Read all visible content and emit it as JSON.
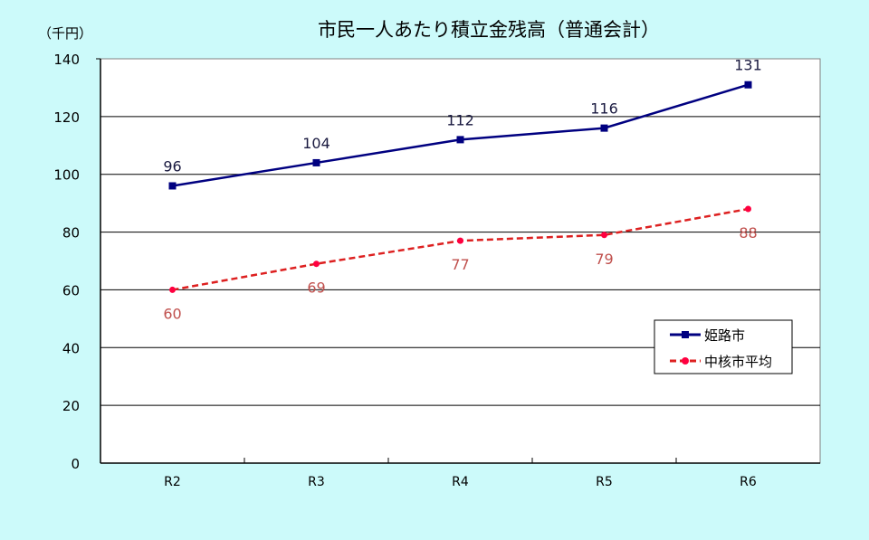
{
  "chart_data": {
    "type": "line",
    "title": "市民一人あたり積立金残高（普通会計）",
    "ylabel": "（千円）",
    "xlabel": "",
    "categories": [
      "R2",
      "R3",
      "R4",
      "R5",
      "R6"
    ],
    "ylim": [
      0,
      140
    ],
    "yticks": [
      0,
      20,
      40,
      60,
      80,
      100,
      120,
      140
    ],
    "grid": true,
    "legend_position": "right",
    "series": [
      {
        "name": "姫路市",
        "values": [
          96,
          104,
          112,
          116,
          131
        ],
        "labels": [
          "96",
          "104",
          "112",
          "116",
          "131"
        ],
        "color": "#000080",
        "marker": "square",
        "dash": "solid"
      },
      {
        "name": "中核市平均",
        "values": [
          60,
          69,
          77,
          79,
          88
        ],
        "labels": [
          "60",
          "69",
          "77",
          "79",
          "88"
        ],
        "color": "#ff0000",
        "label_color": "#c0504d",
        "marker": "circle",
        "dash": "dashed"
      }
    ]
  }
}
